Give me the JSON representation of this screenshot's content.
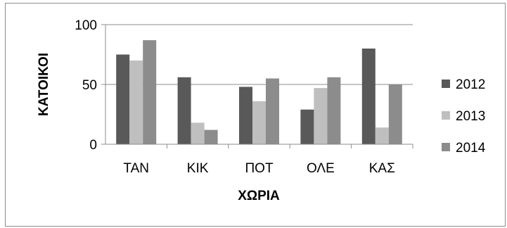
{
  "chart_data": {
    "type": "bar",
    "title": "",
    "xlabel": "ΧΩΡΙΑ",
    "ylabel": "ΚΑΤΟΙΚΟΙ",
    "categories": [
      "ΤΑΝ",
      "ΚΙΚ",
      "ΠΟΤ",
      "ΟΛΕ",
      "ΚΑΣ"
    ],
    "series": [
      {
        "name": "2012",
        "values": [
          75,
          56,
          48,
          29,
          80
        ],
        "color": "#595959"
      },
      {
        "name": "2013",
        "values": [
          70,
          18,
          36,
          47,
          14
        ],
        "color": "#bfbfbf"
      },
      {
        "name": "2014",
        "values": [
          87,
          12,
          55,
          56,
          50
        ],
        "color": "#8c8c8c"
      }
    ],
    "ylim": [
      0,
      100
    ],
    "yticks": [
      0,
      50,
      100
    ],
    "grid": true,
    "legend": "right"
  }
}
